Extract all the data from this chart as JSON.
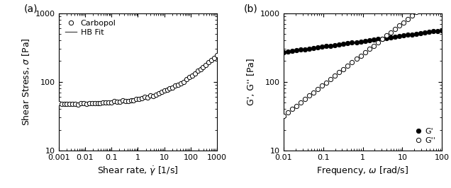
{
  "panel_a": {
    "xlabel": "Shear rate, $\\dot{\\gamma}$ [1/s]",
    "ylabel": "Shear Stress, $\\sigma$ [Pa]",
    "xlim": [
      0.001,
      1000
    ],
    "ylim": [
      10,
      1000
    ],
    "HB_sigma0": 47.0,
    "HB_K": 9.5,
    "HB_n": 0.44,
    "legend_labels": [
      "Carbopol",
      "HB Fit"
    ],
    "xticklabels": [
      "0.001",
      "0.01",
      "0.1",
      "1",
      "10",
      "100",
      "1000"
    ],
    "xticks": [
      0.001,
      0.01,
      0.1,
      1,
      10,
      100,
      1000
    ],
    "yticks": [
      10,
      100,
      1000
    ],
    "yticklabels": [
      "10",
      "100",
      "1000"
    ]
  },
  "panel_b": {
    "xlabel": "Frequency, $\\omega$ [rad/s]",
    "ylabel": "G', G'' [Pa]",
    "xlim": [
      0.01,
      100
    ],
    "ylim": [
      10,
      1000
    ],
    "Gprime_base": 270,
    "Gprime_slope": 0.08,
    "Gdprime_base": 32,
    "Gdprime_slope": 0.45,
    "legend_labels": [
      "G'",
      "G''"
    ],
    "xticks": [
      0.01,
      0.1,
      1,
      10,
      100
    ],
    "xticklabels": [
      "0.01",
      "0.1",
      "1",
      "10",
      "100"
    ],
    "yticks": [
      10,
      100,
      1000
    ],
    "yticklabels": [
      "10",
      "100",
      "1000"
    ]
  },
  "marker_size": 4.5,
  "line_color": "#555555",
  "open_marker_color": "white",
  "closed_marker_color": "black",
  "edge_color": "black"
}
